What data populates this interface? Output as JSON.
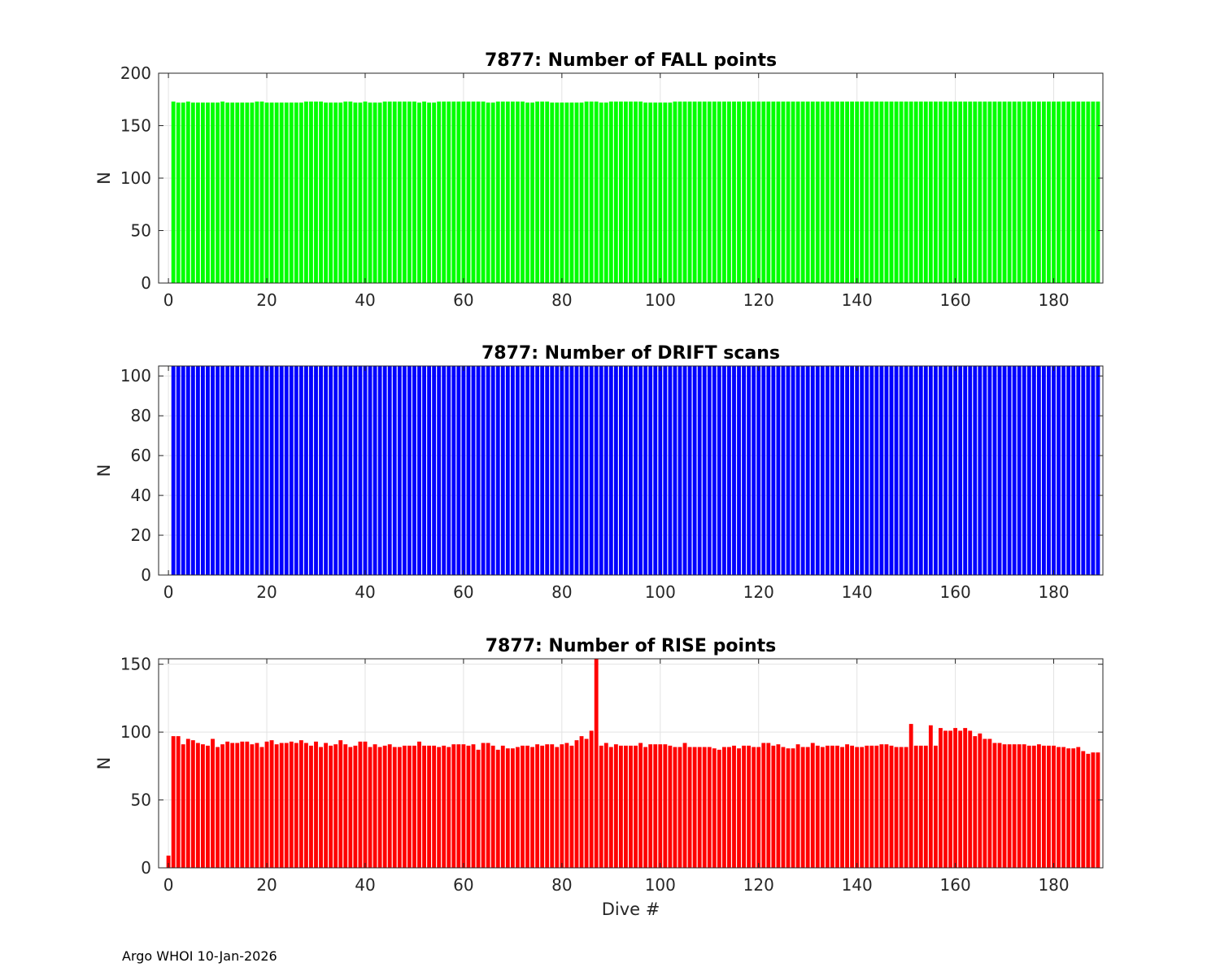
{
  "footer": "Argo WHOI 10-Jan-2026",
  "chart_data": [
    {
      "type": "bar",
      "title": "7877: Number of FALL points",
      "xlabel": "",
      "ylabel": "N",
      "color": "#00ff00",
      "xlim": [
        -2,
        190
      ],
      "ylim": [
        0,
        200
      ],
      "xticks": [
        0,
        20,
        40,
        60,
        80,
        100,
        120,
        140,
        160,
        180
      ],
      "yticks": [
        0,
        50,
        100,
        150,
        200
      ],
      "grid": true,
      "x": [
        0,
        1,
        2,
        3,
        4,
        5,
        6,
        7,
        8,
        9,
        10,
        11,
        12,
        13,
        14,
        15,
        16,
        17,
        18,
        19,
        20,
        21,
        22,
        23,
        24,
        25,
        26,
        27,
        28,
        29,
        30,
        31,
        32,
        33,
        34,
        35,
        36,
        37,
        38,
        39,
        40,
        41,
        42,
        43,
        44,
        45,
        46,
        47,
        48,
        49,
        50,
        51,
        52,
        53,
        54,
        55,
        56,
        57,
        58,
        59,
        60,
        61,
        62,
        63,
        64,
        65,
        66,
        67,
        68,
        69,
        70,
        71,
        72,
        73,
        74,
        75,
        76,
        77,
        78,
        79,
        80,
        81,
        82,
        83,
        84,
        85,
        86,
        87,
        88,
        89,
        90,
        91,
        92,
        93,
        94,
        95,
        96,
        97,
        98,
        99,
        100,
        101,
        102,
        103,
        104,
        105,
        106,
        107,
        108,
        109,
        110,
        111,
        112,
        113,
        114,
        115,
        116,
        117,
        118,
        119,
        120,
        121,
        122,
        123,
        124,
        125,
        126,
        127,
        128,
        129,
        130,
        131,
        132,
        133,
        134,
        135,
        136,
        137,
        138,
        139,
        140,
        141,
        142,
        143,
        144,
        145,
        146,
        147,
        148,
        149,
        150,
        151,
        152,
        153,
        154,
        155,
        156,
        157,
        158,
        159,
        160,
        161,
        162,
        163,
        164,
        165,
        166,
        167,
        168,
        169,
        170,
        171,
        172,
        173,
        174,
        175,
        176,
        177,
        178,
        179,
        180,
        181,
        182,
        183,
        184,
        185,
        186,
        187,
        188,
        189
      ],
      "values": [
        0,
        173,
        172,
        172,
        173,
        172,
        172,
        172,
        172,
        172,
        172,
        173,
        172,
        172,
        172,
        172,
        172,
        172,
        173,
        173,
        172,
        172,
        172,
        172,
        172,
        172,
        172,
        172,
        173,
        173,
        173,
        173,
        172,
        172,
        172,
        172,
        173,
        173,
        172,
        172,
        173,
        172,
        172,
        172,
        173,
        173,
        173,
        173,
        173,
        173,
        173,
        172,
        173,
        172,
        172,
        173,
        173,
        173,
        173,
        173,
        173,
        173,
        173,
        173,
        173,
        172,
        172,
        173,
        173,
        173,
        173,
        173,
        173,
        172,
        172,
        173,
        173,
        173,
        172,
        172,
        172,
        172,
        172,
        172,
        172,
        173,
        173,
        173,
        172,
        172,
        173,
        173,
        173,
        173,
        173,
        173,
        173,
        172,
        172,
        172,
        172,
        172,
        172,
        173,
        173,
        173,
        173,
        173,
        173,
        173,
        173,
        173,
        173,
        173,
        173,
        173,
        173,
        173,
        173,
        173,
        173,
        173,
        173,
        173,
        173,
        173,
        173,
        173,
        173,
        173,
        173,
        173,
        173,
        173,
        173,
        173,
        173,
        173,
        173,
        173,
        173,
        173,
        173,
        173,
        173,
        173,
        173,
        173,
        173,
        173,
        173,
        173,
        173,
        173,
        173,
        173,
        173,
        173,
        173,
        173,
        173,
        173,
        173,
        173,
        173,
        173,
        173,
        173,
        173,
        173,
        173,
        173,
        173,
        173,
        173,
        173,
        173,
        173,
        173,
        173,
        173,
        173,
        173,
        173,
        173,
        173,
        173,
        173,
        173,
        173
      ]
    },
    {
      "type": "bar",
      "title": "7877: Number of DRIFT scans",
      "xlabel": "",
      "ylabel": "N",
      "color": "#0000ff",
      "xlim": [
        -2,
        190
      ],
      "ylim": [
        0,
        105
      ],
      "xticks": [
        0,
        20,
        40,
        60,
        80,
        100,
        120,
        140,
        160,
        180
      ],
      "yticks": [
        0,
        20,
        40,
        60,
        80,
        100
      ],
      "grid": true,
      "x": [
        0,
        1,
        2,
        3,
        4,
        5,
        6,
        7,
        8,
        9,
        10,
        11,
        12,
        13,
        14,
        15,
        16,
        17,
        18,
        19,
        20,
        21,
        22,
        23,
        24,
        25,
        26,
        27,
        28,
        29,
        30,
        31,
        32,
        33,
        34,
        35,
        36,
        37,
        38,
        39,
        40,
        41,
        42,
        43,
        44,
        45,
        46,
        47,
        48,
        49,
        50,
        51,
        52,
        53,
        54,
        55,
        56,
        57,
        58,
        59,
        60,
        61,
        62,
        63,
        64,
        65,
        66,
        67,
        68,
        69,
        70,
        71,
        72,
        73,
        74,
        75,
        76,
        77,
        78,
        79,
        80,
        81,
        82,
        83,
        84,
        85,
        86,
        87,
        88,
        89,
        90,
        91,
        92,
        93,
        94,
        95,
        96,
        97,
        98,
        99,
        100,
        101,
        102,
        103,
        104,
        105,
        106,
        107,
        108,
        109,
        110,
        111,
        112,
        113,
        114,
        115,
        116,
        117,
        118,
        119,
        120,
        121,
        122,
        123,
        124,
        125,
        126,
        127,
        128,
        129,
        130,
        131,
        132,
        133,
        134,
        135,
        136,
        137,
        138,
        139,
        140,
        141,
        142,
        143,
        144,
        145,
        146,
        147,
        148,
        149,
        150,
        151,
        152,
        153,
        154,
        155,
        156,
        157,
        158,
        159,
        160,
        161,
        162,
        163,
        164,
        165,
        166,
        167,
        168,
        169,
        170,
        171,
        172,
        173,
        174,
        175,
        176,
        177,
        178,
        179,
        180,
        181,
        182,
        183,
        184,
        185,
        186,
        187,
        188,
        189
      ],
      "values": [
        0,
        105,
        105,
        105,
        105,
        105,
        105,
        105,
        105,
        105,
        105,
        105,
        105,
        105,
        105,
        105,
        105,
        105,
        105,
        105,
        105,
        105,
        105,
        105,
        105,
        105,
        105,
        105,
        105,
        105,
        105,
        105,
        105,
        105,
        105,
        105,
        105,
        105,
        105,
        105,
        105,
        105,
        105,
        105,
        105,
        105,
        105,
        105,
        105,
        105,
        105,
        105,
        105,
        105,
        105,
        105,
        105,
        105,
        105,
        105,
        105,
        105,
        105,
        105,
        105,
        105,
        105,
        105,
        105,
        105,
        105,
        105,
        105,
        105,
        105,
        105,
        105,
        105,
        105,
        105,
        105,
        105,
        105,
        105,
        105,
        105,
        105,
        105,
        105,
        105,
        105,
        105,
        105,
        105,
        105,
        105,
        105,
        105,
        105,
        105,
        105,
        105,
        105,
        105,
        105,
        105,
        105,
        105,
        105,
        105,
        105,
        105,
        105,
        105,
        105,
        105,
        105,
        105,
        105,
        105,
        105,
        105,
        105,
        105,
        105,
        105,
        105,
        105,
        105,
        105,
        105,
        105,
        105,
        105,
        105,
        105,
        105,
        105,
        105,
        105,
        105,
        105,
        105,
        105,
        105,
        105,
        105,
        105,
        105,
        105,
        105,
        105,
        105,
        105,
        105,
        105,
        105,
        105,
        105,
        105,
        105,
        105,
        105,
        105,
        105,
        105,
        105,
        105,
        105,
        105,
        105,
        105,
        105,
        105,
        105,
        105,
        105,
        105,
        105,
        105,
        105,
        105,
        105,
        105,
        105,
        105,
        105,
        105,
        105,
        105
      ]
    },
    {
      "type": "bar",
      "title": "7877: Number of RISE points",
      "xlabel": "Dive #",
      "ylabel": "N",
      "color": "#ff0000",
      "xlim": [
        -2,
        190
      ],
      "ylim": [
        0,
        154
      ],
      "xticks": [
        0,
        20,
        40,
        60,
        80,
        100,
        120,
        140,
        160,
        180
      ],
      "yticks": [
        0,
        50,
        100,
        150
      ],
      "grid": true,
      "x": [
        0,
        1,
        2,
        3,
        4,
        5,
        6,
        7,
        8,
        9,
        10,
        11,
        12,
        13,
        14,
        15,
        16,
        17,
        18,
        19,
        20,
        21,
        22,
        23,
        24,
        25,
        26,
        27,
        28,
        29,
        30,
        31,
        32,
        33,
        34,
        35,
        36,
        37,
        38,
        39,
        40,
        41,
        42,
        43,
        44,
        45,
        46,
        47,
        48,
        49,
        50,
        51,
        52,
        53,
        54,
        55,
        56,
        57,
        58,
        59,
        60,
        61,
        62,
        63,
        64,
        65,
        66,
        67,
        68,
        69,
        70,
        71,
        72,
        73,
        74,
        75,
        76,
        77,
        78,
        79,
        80,
        81,
        82,
        83,
        84,
        85,
        86,
        87,
        88,
        89,
        90,
        91,
        92,
        93,
        94,
        95,
        96,
        97,
        98,
        99,
        100,
        101,
        102,
        103,
        104,
        105,
        106,
        107,
        108,
        109,
        110,
        111,
        112,
        113,
        114,
        115,
        116,
        117,
        118,
        119,
        120,
        121,
        122,
        123,
        124,
        125,
        126,
        127,
        128,
        129,
        130,
        131,
        132,
        133,
        134,
        135,
        136,
        137,
        138,
        139,
        140,
        141,
        142,
        143,
        144,
        145,
        146,
        147,
        148,
        149,
        150,
        151,
        152,
        153,
        154,
        155,
        156,
        157,
        158,
        159,
        160,
        161,
        162,
        163,
        164,
        165,
        166,
        167,
        168,
        169,
        170,
        171,
        172,
        173,
        174,
        175,
        176,
        177,
        178,
        179,
        180,
        181,
        182,
        183,
        184,
        185,
        186,
        187,
        188,
        189
      ],
      "values": [
        9,
        97,
        97,
        91,
        95,
        94,
        92,
        91,
        90,
        95,
        89,
        91,
        93,
        92,
        92,
        93,
        93,
        91,
        92,
        89,
        93,
        94,
        91,
        92,
        92,
        93,
        92,
        94,
        92,
        90,
        93,
        89,
        92,
        90,
        91,
        94,
        91,
        89,
        90,
        93,
        93,
        89,
        91,
        89,
        90,
        91,
        89,
        89,
        90,
        90,
        90,
        93,
        90,
        90,
        90,
        89,
        90,
        89,
        91,
        91,
        91,
        90,
        91,
        87,
        92,
        92,
        90,
        87,
        90,
        88,
        88,
        89,
        90,
        90,
        89,
        91,
        90,
        91,
        91,
        89,
        91,
        92,
        90,
        94,
        97,
        95,
        101,
        154,
        90,
        92,
        89,
        91,
        90,
        90,
        90,
        90,
        92,
        89,
        91,
        91,
        91,
        91,
        90,
        89,
        89,
        92,
        89,
        89,
        89,
        89,
        89,
        88,
        87,
        89,
        89,
        90,
        88,
        90,
        90,
        89,
        89,
        92,
        92,
        90,
        91,
        89,
        88,
        88,
        91,
        89,
        89,
        92,
        90,
        89,
        90,
        90,
        90,
        89,
        91,
        90,
        89,
        89,
        90,
        90,
        90,
        91,
        91,
        90,
        89,
        89,
        89,
        106,
        90,
        90,
        90,
        105,
        90,
        103,
        101,
        101,
        103,
        101,
        103,
        101,
        97,
        99,
        95,
        95,
        92,
        92,
        91,
        91,
        91,
        91,
        91,
        90,
        90,
        91,
        90,
        90,
        90,
        89,
        89,
        88,
        88,
        89,
        86,
        84,
        85,
        85
      ]
    }
  ]
}
